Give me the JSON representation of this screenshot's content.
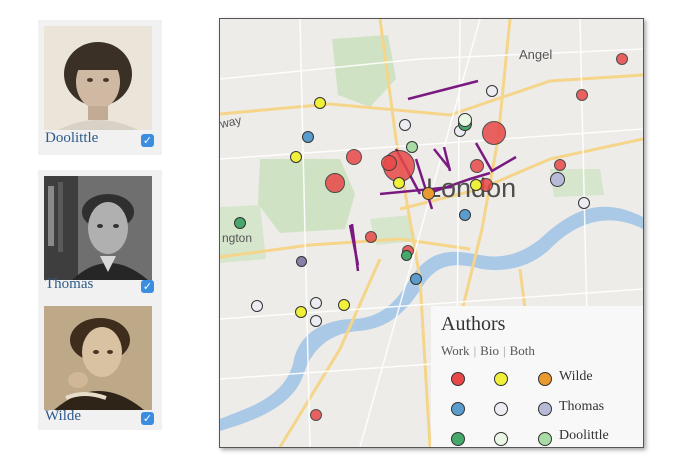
{
  "authors_panel": [
    {
      "name": "Doolittle",
      "checked": "✓"
    },
    {
      "name": "Thomas",
      "checked": "✓"
    },
    {
      "name": "Wilde",
      "checked": "✓"
    }
  ],
  "map": {
    "places": {
      "angel": "Angel",
      "london": "London",
      "kensington": "ngton",
      "way": "way"
    }
  },
  "legend": {
    "title": "Authors",
    "col_work": "Work",
    "col_bio": "Bio",
    "col_both": "Both",
    "separator": "|",
    "rows": [
      {
        "name": "Wilde",
        "work_color": "#e84848",
        "bio_color": "#f0f03a",
        "both_color": "#e89a2e"
      },
      {
        "name": "Thomas",
        "work_color": "#5a9ccc",
        "bio_color": "#ececf2",
        "both_color": "#b8bbd8"
      },
      {
        "name": "Doolittle",
        "work_color": "#46a86a",
        "bio_color": "#eaf6e6",
        "both_color": "#a8dca4"
      }
    ]
  },
  "colors": {
    "checkbox": "#3b8de0",
    "label": "#2d5a8a",
    "route": "#7a1a80",
    "water": "#a9c9e6",
    "park": "#cfe3c4"
  }
}
